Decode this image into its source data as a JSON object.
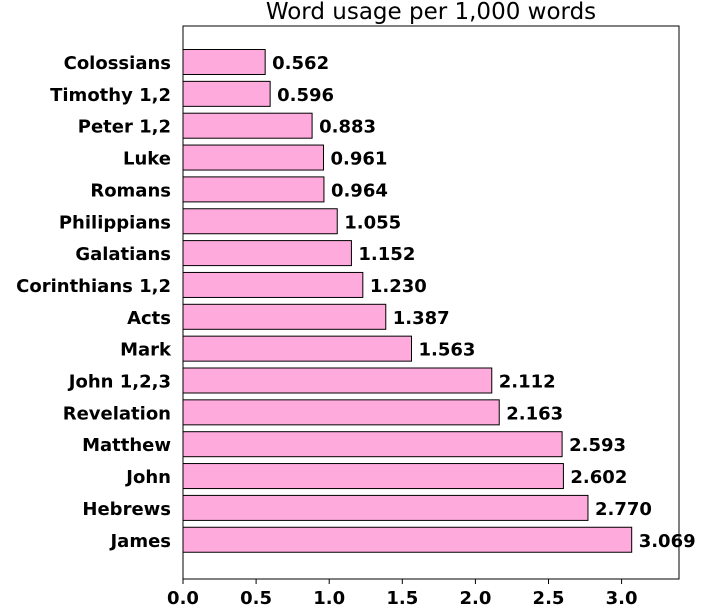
{
  "chart_data": {
    "type": "bar",
    "orientation": "horizontal",
    "title": "Word usage per 1,000 words",
    "xlabel": "",
    "ylabel": "",
    "categories": [
      "Colossians",
      "Timothy 1,2",
      "Peter 1,2",
      "Luke",
      "Romans",
      "Philippians",
      "Galatians",
      "Corinthians 1,2",
      "Acts",
      "Mark",
      "John 1,2,3",
      "Revelation",
      "Matthew",
      "John",
      "Hebrews",
      "James"
    ],
    "values": [
      0.562,
      0.596,
      0.883,
      0.961,
      0.964,
      1.055,
      1.152,
      1.23,
      1.387,
      1.563,
      2.112,
      2.163,
      2.593,
      2.602,
      2.77,
      3.069
    ],
    "value_labels": [
      "0.562",
      "0.596",
      "0.883",
      "0.961",
      "0.964",
      "1.055",
      "1.152",
      "1.230",
      "1.387",
      "1.563",
      "2.112",
      "2.163",
      "2.593",
      "2.602",
      "2.770",
      "3.069"
    ],
    "xlim": [
      0,
      3.4
    ],
    "xticks": [
      0,
      0.5,
      1,
      1.5,
      2,
      2.5,
      3
    ],
    "xtick_labels": [
      "0.0",
      "0.5",
      "1.0",
      "1.5",
      "2.0",
      "2.5",
      "3.0"
    ],
    "bar_color": "#ffaadd",
    "edge_color": "#000000",
    "grid": false,
    "legend": "none"
  }
}
